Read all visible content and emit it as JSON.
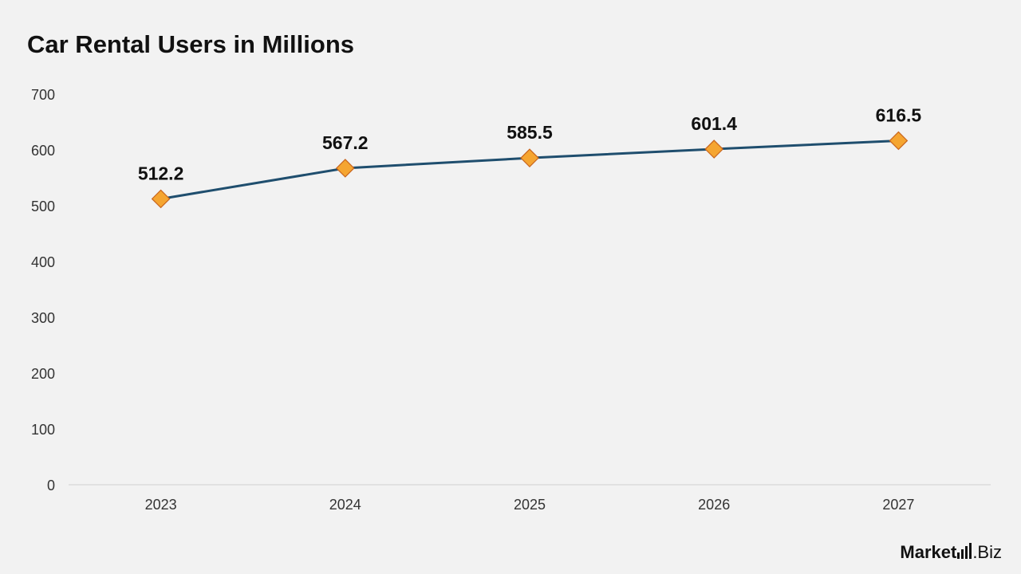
{
  "title": "Car Rental Users in Millions",
  "colors": {
    "background": "#f2f2f2",
    "line": "#1f4e6e",
    "marker_fill": "#f5a531",
    "marker_stroke": "#c8651e",
    "axis": "#d0d0d0"
  },
  "chart_data": {
    "type": "line",
    "title": "Car Rental Users in Millions",
    "categories": [
      "2023",
      "2024",
      "2025",
      "2026",
      "2027"
    ],
    "series": [
      {
        "values": [
          512.2,
          567.2,
          585.5,
          601.4,
          616.5
        ]
      }
    ],
    "data_labels": [
      "512.2",
      "567.2",
      "585.5",
      "601.4",
      "616.5"
    ],
    "y_ticks": [
      "0",
      "100",
      "200",
      "300",
      "400",
      "500",
      "600",
      "700"
    ],
    "ylim": [
      0,
      700
    ],
    "grid": false,
    "legend": "none",
    "marker": "diamond"
  },
  "logo": {
    "part1": "Market",
    "part2": ".Biz"
  }
}
